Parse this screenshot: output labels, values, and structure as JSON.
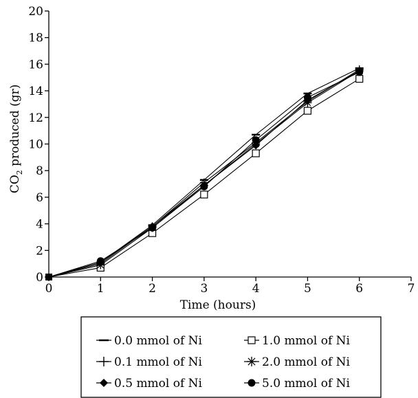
{
  "chart_data": {
    "type": "line",
    "xlabel": "Time (hours)",
    "ylabel_main": "CO",
    "ylabel_sub": "2",
    "ylabel_rest": " produced (gr)",
    "xlim": [
      0,
      7
    ],
    "ylim": [
      0,
      20
    ],
    "x_ticks": [
      "0",
      "1",
      "2",
      "3",
      "4",
      "5",
      "6",
      "7"
    ],
    "y_ticks": [
      "0",
      "2",
      "4",
      "6",
      "8",
      "10",
      "12",
      "14",
      "16",
      "18",
      "20"
    ],
    "grid": false,
    "legend_placement": "bottom",
    "x": [
      0,
      1,
      2,
      3,
      4,
      5,
      6
    ],
    "series": [
      {
        "name": "0.0 mmol of Ni",
        "marker": "dash",
        "values": [
          0,
          1.1,
          3.9,
          7.3,
          10.7,
          13.8,
          15.7
        ]
      },
      {
        "name": "1.0 mmol of Ni",
        "marker": "open-square",
        "values": [
          0,
          0.7,
          3.3,
          6.2,
          9.3,
          12.5,
          14.9
        ]
      },
      {
        "name": "0.1 mmol of Ni",
        "marker": "plus",
        "values": [
          0,
          1.0,
          3.8,
          7.1,
          10.1,
          13.2,
          15.6
        ]
      },
      {
        "name": "2.0 mmol of Ni",
        "marker": "asterisk",
        "values": [
          0,
          0.9,
          3.7,
          6.9,
          10.0,
          13.1,
          15.5
        ]
      },
      {
        "name": "0.5 mmol of Ni",
        "marker": "filled-diamond",
        "values": [
          0,
          1.1,
          3.8,
          6.9,
          9.9,
          13.3,
          15.5
        ]
      },
      {
        "name": "5.0 mmol of Ni",
        "marker": "filled-circle",
        "values": [
          0,
          1.2,
          3.7,
          6.8,
          10.3,
          13.5,
          15.4
        ]
      }
    ],
    "colors": {
      "line": "#000000",
      "background": "#ffffff"
    }
  }
}
